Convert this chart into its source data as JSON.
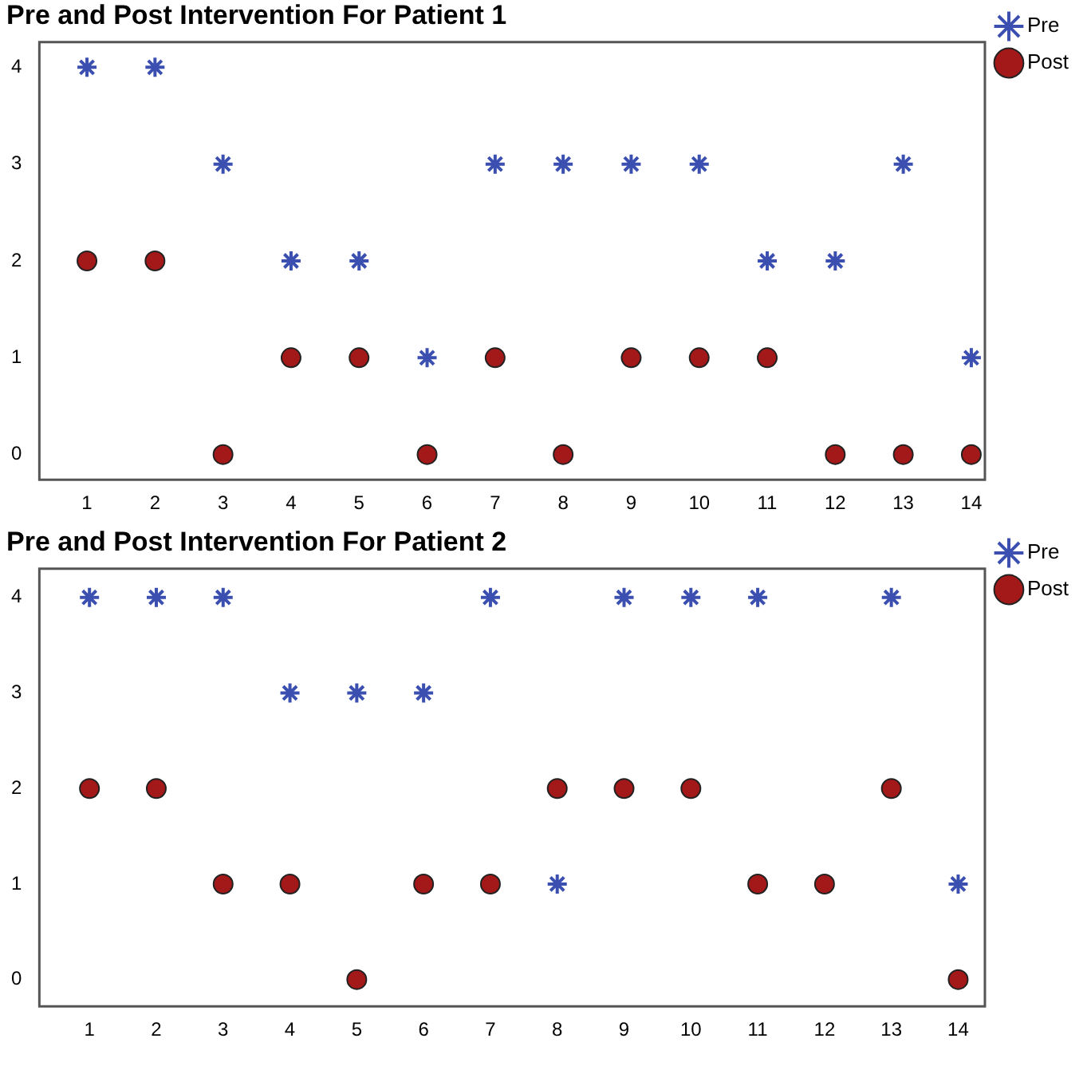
{
  "chart_data": [
    {
      "type": "scatter",
      "title": "Pre and Post Intervention For Patient 1",
      "x": [
        1,
        2,
        3,
        4,
        5,
        6,
        7,
        8,
        9,
        10,
        11,
        12,
        13,
        14
      ],
      "xlim": [
        0.3,
        14.2
      ],
      "xticks": [
        1,
        2,
        3,
        4,
        5,
        6,
        7,
        8,
        9,
        10,
        11,
        12,
        13,
        14
      ],
      "ylim": [
        -0.26,
        4.26
      ],
      "yticks": [
        0,
        1,
        2,
        3,
        4
      ],
      "grid": false,
      "legend": "top right",
      "series": [
        {
          "name": "Pre",
          "color": "#3b4fb0",
          "marker": "cross",
          "values": [
            4,
            4,
            3,
            2,
            2,
            1,
            3,
            3,
            3,
            3,
            2,
            2,
            3,
            1
          ]
        },
        {
          "name": "Post",
          "color": "#a31818",
          "marker": "circle",
          "values": [
            2,
            2,
            0,
            1,
            1,
            0,
            1,
            0,
            1,
            1,
            1,
            0,
            0,
            0
          ]
        }
      ]
    },
    {
      "type": "scatter",
      "title": "Pre and Post Intervention For Patient 2",
      "x": [
        1,
        2,
        3,
        4,
        5,
        6,
        7,
        8,
        9,
        10,
        11,
        12,
        13,
        14
      ],
      "xlim": [
        0.25,
        14.4
      ],
      "xticks": [
        1,
        2,
        3,
        4,
        5,
        6,
        7,
        8,
        9,
        10,
        11,
        12,
        13,
        14
      ],
      "ylim": [
        -0.28,
        4.3
      ],
      "yticks": [
        0,
        1,
        2,
        3,
        4
      ],
      "grid": false,
      "legend": "top right",
      "series": [
        {
          "name": "Pre",
          "color": "#3b4fb0",
          "marker": "cross",
          "values": [
            4,
            4,
            4,
            3,
            3,
            3,
            4,
            1,
            4,
            4,
            4,
            null,
            4,
            1
          ]
        },
        {
          "name": "Post",
          "color": "#a31818",
          "marker": "circle",
          "values": [
            2,
            2,
            1,
            1,
            0,
            1,
            1,
            2,
            2,
            2,
            1,
            1,
            2,
            0
          ]
        }
      ]
    }
  ]
}
